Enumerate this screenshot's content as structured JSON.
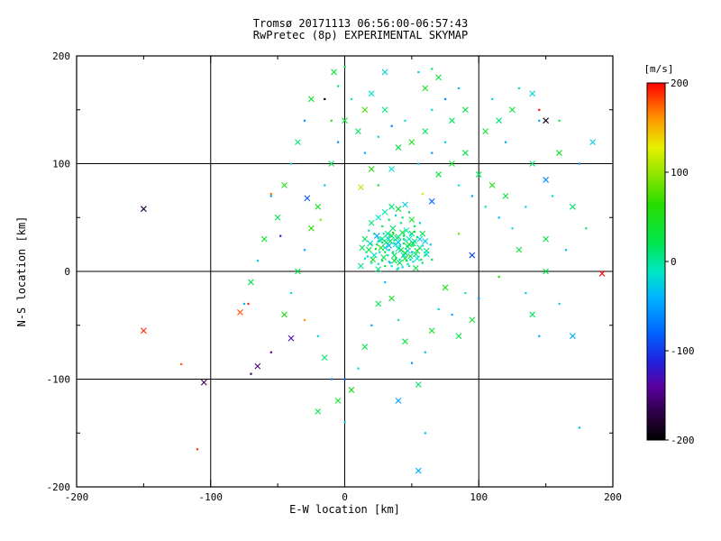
{
  "chart_data": {
    "type": "scatter",
    "title": "Tromsø 20171113 06:56:00-06:57:43",
    "subtitle": "RwPretec (8p) EXPERIMENTAL SKYMAP",
    "xlabel": "E-W location [km]",
    "ylabel": "N-S location [km]",
    "xlim": [
      -200,
      200
    ],
    "ylim": [
      -200,
      200
    ],
    "xticks": [
      -200,
      -100,
      0,
      100,
      200
    ],
    "yticks": [
      -200,
      -100,
      0,
      100,
      200
    ],
    "grid": true,
    "marker": "x",
    "frame_color": "#000000",
    "background_color": "#ffffff",
    "colorbar": {
      "label": "[m/s]",
      "range": [
        -200,
        200
      ],
      "ticks": [
        200,
        100,
        0,
        -100,
        -200
      ],
      "position": "right",
      "stops": [
        [
          0.0,
          "#000000"
        ],
        [
          0.08,
          "#30004a"
        ],
        [
          0.15,
          "#5a00a0"
        ],
        [
          0.22,
          "#2020dc"
        ],
        [
          0.3,
          "#0064ff"
        ],
        [
          0.4,
          "#00b4ff"
        ],
        [
          0.47,
          "#00e6c8"
        ],
        [
          0.55,
          "#00e650"
        ],
        [
          0.66,
          "#28dc00"
        ],
        [
          0.75,
          "#96e600"
        ],
        [
          0.82,
          "#e6f000"
        ],
        [
          0.9,
          "#ff9600"
        ],
        [
          1.0,
          "#ff0000"
        ]
      ]
    },
    "points": [
      [
        12,
        5,
        10
      ],
      [
        15,
        12,
        -8
      ],
      [
        18,
        20,
        22
      ],
      [
        20,
        8,
        5
      ],
      [
        22,
        15,
        -15
      ],
      [
        24,
        25,
        30
      ],
      [
        25,
        2,
        8
      ],
      [
        26,
        18,
        -5
      ],
      [
        28,
        30,
        12
      ],
      [
        28,
        10,
        18
      ],
      [
        30,
        22,
        -20
      ],
      [
        30,
        5,
        40
      ],
      [
        32,
        35,
        6
      ],
      [
        32,
        15,
        -10
      ],
      [
        34,
        28,
        25
      ],
      [
        34,
        8,
        -30
      ],
      [
        36,
        40,
        15
      ],
      [
        36,
        18,
        8
      ],
      [
        38,
        25,
        -12
      ],
      [
        38,
        12,
        35
      ],
      [
        40,
        32,
        10
      ],
      [
        40,
        3,
        -18
      ],
      [
        42,
        20,
        28
      ],
      [
        42,
        45,
        5
      ],
      [
        44,
        15,
        -25
      ],
      [
        44,
        30,
        14
      ],
      [
        46,
        38,
        -8
      ],
      [
        46,
        10,
        20
      ],
      [
        48,
        25,
        45
      ],
      [
        48,
        5,
        -5
      ],
      [
        50,
        35,
        12
      ],
      [
        50,
        18,
        -35
      ],
      [
        52,
        28,
        8
      ],
      [
        52,
        42,
        22
      ],
      [
        54,
        12,
        -15
      ],
      [
        54,
        32,
        30
      ],
      [
        56,
        22,
        5
      ],
      [
        56,
        45,
        -20
      ],
      [
        58,
        35,
        18
      ],
      [
        58,
        8,
        10
      ],
      [
        60,
        28,
        -28
      ],
      [
        60,
        15,
        38
      ],
      [
        15,
        30,
        14
      ],
      [
        18,
        38,
        -22
      ],
      [
        20,
        45,
        8
      ],
      [
        22,
        35,
        25
      ],
      [
        25,
        50,
        -12
      ],
      [
        28,
        42,
        16
      ],
      [
        30,
        55,
        -5
      ],
      [
        33,
        48,
        20
      ],
      [
        35,
        60,
        10
      ],
      [
        38,
        52,
        -18
      ],
      [
        40,
        58,
        30
      ],
      [
        43,
        50,
        5
      ],
      [
        45,
        62,
        -25
      ],
      [
        48,
        55,
        15
      ],
      [
        50,
        48,
        40
      ],
      [
        25,
        28,
        -40
      ],
      [
        27,
        22,
        50
      ],
      [
        29,
        35,
        -8
      ],
      [
        31,
        27,
        12
      ],
      [
        33,
        20,
        -30
      ],
      [
        35,
        33,
        24
      ],
      [
        37,
        26,
        -14
      ],
      [
        39,
        31,
        9
      ],
      [
        41,
        24,
        -22
      ],
      [
        43,
        36,
        33
      ],
      [
        45,
        29,
        -6
      ],
      [
        47,
        23,
        17
      ],
      [
        49,
        34,
        -28
      ],
      [
        51,
        26,
        11
      ],
      [
        35,
        5,
        -12
      ],
      [
        37,
        10,
        26
      ],
      [
        39,
        2,
        -8
      ],
      [
        41,
        8,
        15
      ],
      [
        43,
        4,
        -20
      ],
      [
        45,
        12,
        31
      ],
      [
        47,
        7,
        -4
      ],
      [
        49,
        14,
        19
      ],
      [
        51,
        9,
        -16
      ],
      [
        53,
        3,
        27
      ],
      [
        20,
        25,
        60
      ],
      [
        24,
        33,
        -45
      ],
      [
        28,
        27,
        38
      ],
      [
        32,
        31,
        -18
      ],
      [
        36,
        36,
        52
      ],
      [
        40,
        27,
        -33
      ],
      [
        44,
        33,
        21
      ],
      [
        48,
        30,
        -9
      ],
      [
        52,
        37,
        44
      ],
      [
        56,
        30,
        -26
      ],
      [
        16,
        18,
        12
      ],
      [
        19,
        26,
        -19
      ],
      [
        23,
        21,
        34
      ],
      [
        26,
        29,
        -7
      ],
      [
        30,
        18,
        23
      ],
      [
        33,
        24,
        -38
      ],
      [
        37,
        29,
        16
      ],
      [
        40,
        21,
        -11
      ],
      [
        44,
        26,
        29
      ],
      [
        47,
        19,
        -24
      ],
      [
        51,
        24,
        13
      ],
      [
        54,
        19,
        36
      ],
      [
        58,
        24,
        -17
      ],
      [
        61,
        19,
        8
      ],
      [
        64,
        25,
        -29
      ],
      [
        13,
        22,
        18
      ],
      [
        17,
        14,
        -26
      ],
      [
        21,
        11,
        41
      ],
      [
        25,
        7,
        -13
      ],
      [
        29,
        13,
        22
      ],
      [
        33,
        9,
        -31
      ],
      [
        37,
        15,
        14
      ],
      [
        41,
        11,
        -9
      ],
      [
        45,
        17,
        26
      ],
      [
        49,
        11,
        -21
      ],
      [
        53,
        16,
        12
      ],
      [
        57,
        11,
        33
      ],
      [
        61,
        16,
        -15
      ],
      [
        65,
        11,
        24
      ],
      [
        -20,
        60,
        45
      ],
      [
        -15,
        80,
        -30
      ],
      [
        -10,
        100,
        20
      ],
      [
        -5,
        120,
        -60
      ],
      [
        0,
        140,
        35
      ],
      [
        5,
        160,
        -10
      ],
      [
        10,
        130,
        15
      ],
      [
        15,
        110,
        -45
      ],
      [
        20,
        95,
        60
      ],
      [
        25,
        125,
        -20
      ],
      [
        30,
        150,
        10
      ],
      [
        35,
        135,
        -70
      ],
      [
        40,
        115,
        25
      ],
      [
        45,
        140,
        -15
      ],
      [
        50,
        120,
        50
      ],
      [
        55,
        100,
        -35
      ],
      [
        60,
        130,
        18
      ],
      [
        65,
        110,
        -55
      ],
      [
        70,
        90,
        30
      ],
      [
        75,
        120,
        -25
      ],
      [
        80,
        100,
        42
      ],
      [
        85,
        80,
        -12
      ],
      [
        90,
        110,
        22
      ],
      [
        95,
        70,
        -48
      ],
      [
        100,
        90,
        16
      ],
      [
        105,
        60,
        -8
      ],
      [
        110,
        80,
        55
      ],
      [
        115,
        50,
        -38
      ],
      [
        120,
        70,
        28
      ],
      [
        125,
        40,
        -18
      ],
      [
        -25,
        40,
        65
      ],
      [
        -30,
        20,
        -42
      ],
      [
        -35,
        0,
        24
      ],
      [
        -40,
        -20,
        -16
      ],
      [
        -45,
        -40,
        52
      ],
      [
        -20,
        -60,
        -28
      ],
      [
        -15,
        -80,
        12
      ],
      [
        -10,
        -100,
        -64
      ],
      [
        -5,
        -120,
        33
      ],
      [
        0,
        -140,
        -22
      ],
      [
        5,
        -110,
        48
      ],
      [
        10,
        -90,
        -14
      ],
      [
        15,
        -70,
        26
      ],
      [
        20,
        -50,
        -52
      ],
      [
        25,
        -30,
        19
      ],
      [
        30,
        -10,
        -36
      ],
      [
        35,
        -25,
        44
      ],
      [
        40,
        -45,
        -8
      ],
      [
        45,
        -65,
        29
      ],
      [
        50,
        -85,
        -58
      ],
      [
        55,
        -105,
        13
      ],
      [
        60,
        -75,
        -27
      ],
      [
        65,
        -55,
        39
      ],
      [
        70,
        -35,
        -19
      ],
      [
        75,
        -15,
        51
      ],
      [
        80,
        -40,
        -44
      ],
      [
        85,
        -60,
        23
      ],
      [
        90,
        -20,
        -11
      ],
      [
        95,
        -45,
        37
      ],
      [
        100,
        -25,
        -61
      ],
      [
        130,
        20,
        31
      ],
      [
        135,
        60,
        -23
      ],
      [
        140,
        100,
        14
      ],
      [
        145,
        140,
        -49
      ],
      [
        150,
        30,
        27
      ],
      [
        155,
        70,
        -17
      ],
      [
        160,
        110,
        43
      ],
      [
        165,
        20,
        -33
      ],
      [
        170,
        60,
        12
      ],
      [
        175,
        100,
        -56
      ],
      [
        105,
        130,
        38
      ],
      [
        110,
        160,
        -21
      ],
      [
        115,
        140,
        9
      ],
      [
        120,
        120,
        -47
      ],
      [
        125,
        150,
        32
      ],
      [
        130,
        170,
        -13
      ],
      [
        90,
        150,
        24
      ],
      [
        85,
        170,
        -39
      ],
      [
        80,
        140,
        17
      ],
      [
        75,
        160,
        -62
      ],
      [
        70,
        180,
        28
      ],
      [
        65,
        150,
        -16
      ],
      [
        60,
        170,
        46
      ],
      [
        55,
        185,
        -31
      ],
      [
        -50,
        50,
        21
      ],
      [
        -55,
        70,
        -53
      ],
      [
        -60,
        30,
        34
      ],
      [
        -65,
        10,
        -26
      ],
      [
        -70,
        -10,
        18
      ],
      [
        -75,
        -30,
        -41
      ],
      [
        -45,
        80,
        56
      ],
      [
        -40,
        100,
        -24
      ],
      [
        -35,
        120,
        11
      ],
      [
        -30,
        140,
        -59
      ],
      [
        -25,
        160,
        36
      ],
      [
        135,
        -20,
        -28
      ],
      [
        140,
        -40,
        15
      ],
      [
        145,
        -60,
        -43
      ],
      [
        150,
        0,
        30
      ],
      [
        160,
        -30,
        -20
      ],
      [
        -150,
        58,
        -170
      ],
      [
        -15,
        160,
        -195
      ],
      [
        -8,
        185,
        30
      ],
      [
        0,
        190,
        25
      ],
      [
        20,
        165,
        -10
      ],
      [
        -5,
        172,
        15
      ],
      [
        150,
        140,
        -190
      ],
      [
        145,
        150,
        195
      ],
      [
        192,
        -2,
        200
      ],
      [
        -72,
        -30,
        190
      ],
      [
        -78,
        -38,
        180
      ],
      [
        -55,
        72,
        170
      ],
      [
        -150,
        -55,
        190
      ],
      [
        -110,
        -165,
        185
      ],
      [
        -105,
        -103,
        -160
      ],
      [
        -70,
        -95,
        -170
      ],
      [
        -65,
        -88,
        -150
      ],
      [
        -55,
        -75,
        -140
      ],
      [
        -40,
        -62,
        -130
      ],
      [
        -30,
        -45,
        160
      ],
      [
        55,
        -185,
        -40
      ],
      [
        60,
        -150,
        -30
      ],
      [
        40,
        -120,
        -50
      ],
      [
        0,
        -100,
        -80
      ],
      [
        -20,
        -130,
        20
      ],
      [
        175,
        -145,
        -35
      ],
      [
        185,
        120,
        -25
      ],
      [
        180,
        40,
        15
      ],
      [
        170,
        -60,
        -45
      ],
      [
        -48,
        33,
        -110
      ],
      [
        -28,
        68,
        -90
      ],
      [
        -18,
        48,
        95
      ],
      [
        12,
        78,
        110
      ],
      [
        58,
        72,
        120
      ],
      [
        35,
        95,
        -15
      ],
      [
        25,
        80,
        45
      ],
      [
        65,
        65,
        -75
      ],
      [
        85,
        35,
        90
      ],
      [
        95,
        15,
        -95
      ],
      [
        115,
        -5,
        60
      ],
      [
        150,
        85,
        -60
      ],
      [
        160,
        140,
        20
      ],
      [
        140,
        165,
        -20
      ],
      [
        65,
        188,
        15
      ],
      [
        30,
        185,
        -25
      ],
      [
        -10,
        140,
        55
      ],
      [
        15,
        150,
        75
      ],
      [
        -122,
        -86,
        175
      ]
    ]
  }
}
